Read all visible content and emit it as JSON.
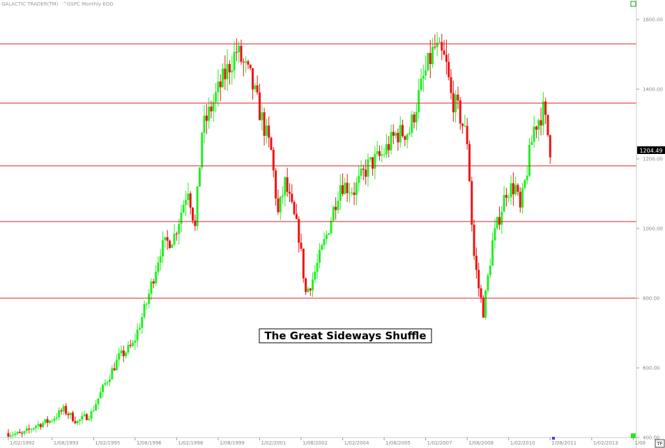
{
  "header": {
    "source": "GALACTIC TRADER(TM)",
    "symbol": "^GSPC Monthly EOD"
  },
  "annotation": "The Great Sideways Shuffle",
  "last_price": "1204.49",
  "corner_label": "TF",
  "colors": {
    "up": "#22ee22",
    "down": "#ee1111",
    "level_line": "#d82020",
    "price_tag": "#000000"
  },
  "chart_data": {
    "type": "candlestick",
    "title": "",
    "xlabel": "",
    "ylabel": "",
    "ylim": [
      400,
      1640
    ],
    "y_ticks": [
      400,
      600,
      800,
      1000,
      1200,
      1400,
      1600
    ],
    "y_tick_labels": [
      "400.00",
      "600.00",
      "800.00",
      "1000.00",
      "1200.00",
      "1400.00",
      "1600.00"
    ],
    "x_tick_labels": [
      "1/02/1992",
      "1/08/1993",
      "1/02/1995",
      "1/08/1996",
      "1/02/1998",
      "1/08/1999",
      "1/02/2001",
      "1/08/2002",
      "1/02/2004",
      "1/08/2005",
      "1/02/2007",
      "1/08/2008",
      "1/02/2010",
      "1/08/2011",
      "1/02/2013",
      "1/08"
    ],
    "x_tick_years": [
      1992.0,
      1993.5833,
      1995.0833,
      1996.5833,
      1998.0833,
      1999.5833,
      2001.0833,
      2002.5833,
      2004.0833,
      2005.5833,
      2007.0833,
      2008.5833,
      2010.0833,
      2011.5833,
      2013.0833,
      2014.5833
    ],
    "x_range": [
      1991.7,
      2014.7
    ],
    "horizontal_levels": [
      1530,
      1360,
      1180,
      1020,
      800
    ],
    "last_value": 1204.49,
    "grid": false,
    "close_anchors": [
      [
        1992.0,
        413
      ],
      [
        1992.5,
        408
      ],
      [
        1993.0,
        435
      ],
      [
        1993.5,
        448
      ],
      [
        1994.0,
        480
      ],
      [
        1994.5,
        445
      ],
      [
        1995.0,
        470
      ],
      [
        1995.5,
        555
      ],
      [
        1996.0,
        630
      ],
      [
        1996.5,
        665
      ],
      [
        1997.0,
        786
      ],
      [
        1997.5,
        940
      ],
      [
        1998.0,
        980
      ],
      [
        1998.5,
        1120
      ],
      [
        1998.75,
        1000
      ],
      [
        1999.0,
        1280
      ],
      [
        1999.5,
        1380
      ],
      [
        2000.0,
        1470
      ],
      [
        2000.25,
        1510
      ],
      [
        2000.75,
        1430
      ],
      [
        2001.0,
        1360
      ],
      [
        2001.5,
        1220
      ],
      [
        2001.75,
        1040
      ],
      [
        2002.0,
        1130
      ],
      [
        2002.5,
        980
      ],
      [
        2002.75,
        815
      ],
      [
        2003.0,
        855
      ],
      [
        2003.5,
        980
      ],
      [
        2004.0,
        1130
      ],
      [
        2004.5,
        1110
      ],
      [
        2005.0,
        1180
      ],
      [
        2005.5,
        1210
      ],
      [
        2006.0,
        1270
      ],
      [
        2006.5,
        1280
      ],
      [
        2007.0,
        1430
      ],
      [
        2007.4,
        1520
      ],
      [
        2007.8,
        1480
      ],
      [
        2008.0,
        1380
      ],
      [
        2008.3,
        1330
      ],
      [
        2008.6,
        1250
      ],
      [
        2008.8,
        940
      ],
      [
        2009.0,
        830
      ],
      [
        2009.17,
        760
      ],
      [
        2009.5,
        960
      ],
      [
        2010.0,
        1110
      ],
      [
        2010.33,
        1120
      ],
      [
        2010.5,
        1050
      ],
      [
        2011.0,
        1290
      ],
      [
        2011.33,
        1340
      ],
      [
        2011.5,
        1270
      ],
      [
        2011.6,
        1204.49
      ]
    ]
  }
}
